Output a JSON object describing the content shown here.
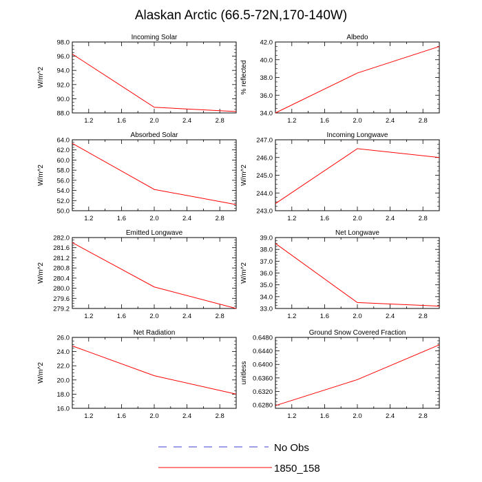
{
  "figure": {
    "title": "Alaskan Arctic (66.5-72N,170-140W)",
    "legend": [
      {
        "label": "No Obs",
        "color": "#3b3bd6",
        "style": "dashed"
      },
      {
        "label": "1850_158",
        "color": "#ff0000",
        "style": "solid"
      }
    ]
  },
  "chart_data": [
    {
      "type": "line",
      "title": "Incoming Solar",
      "ylabel": "W/m^2",
      "xlim": [
        1,
        3
      ],
      "ylim": [
        88,
        98
      ],
      "xticks": [
        "1.2",
        "1.6",
        "2.0",
        "2.4",
        "2.8"
      ],
      "yticks": [
        "88.0",
        "90.0",
        "92.0",
        "94.0",
        "96.0",
        "98.0"
      ],
      "series": [
        {
          "name": "1850_158",
          "x": [
            1,
            2,
            3
          ],
          "y": [
            96.3,
            88.8,
            88.2
          ]
        }
      ]
    },
    {
      "type": "line",
      "title": "Albedo",
      "ylabel": "% reflected",
      "xlim": [
        1,
        3
      ],
      "ylim": [
        34,
        42
      ],
      "xticks": [
        "1.2",
        "1.6",
        "2.0",
        "2.4",
        "2.8"
      ],
      "yticks": [
        "34.0",
        "36.0",
        "38.0",
        "40.0",
        "42.0"
      ],
      "series": [
        {
          "name": "1850_158",
          "x": [
            1,
            2,
            3
          ],
          "y": [
            34.0,
            38.5,
            41.5
          ]
        }
      ]
    },
    {
      "type": "line",
      "title": "Absorbed Solar",
      "ylabel": "W/m^2",
      "xlim": [
        1,
        3
      ],
      "ylim": [
        50,
        64
      ],
      "xticks": [
        "1.2",
        "1.6",
        "2.0",
        "2.4",
        "2.8"
      ],
      "yticks": [
        "50.0",
        "52.0",
        "54.0",
        "56.0",
        "58.0",
        "60.0",
        "62.0",
        "64.0"
      ],
      "series": [
        {
          "name": "1850_158",
          "x": [
            1,
            2,
            3
          ],
          "y": [
            63.3,
            54.2,
            51.2
          ]
        }
      ]
    },
    {
      "type": "line",
      "title": "Incoming Longwave",
      "ylabel": "W/m^2",
      "xlim": [
        1,
        3
      ],
      "ylim": [
        243,
        247
      ],
      "xticks": [
        "1.2",
        "1.6",
        "2.0",
        "2.4",
        "2.8"
      ],
      "yticks": [
        "243.0",
        "244.0",
        "245.0",
        "246.0",
        "247.0"
      ],
      "series": [
        {
          "name": "1850_158",
          "x": [
            1,
            2,
            3
          ],
          "y": [
            243.4,
            246.5,
            246.0
          ]
        }
      ]
    },
    {
      "type": "line",
      "title": "Emitted Longwave",
      "ylabel": "W/m^2",
      "xlim": [
        1,
        3
      ],
      "ylim": [
        279.2,
        282.0
      ],
      "xticks": [
        "1.2",
        "1.6",
        "2.0",
        "2.4",
        "2.8"
      ],
      "yticks": [
        "279.2",
        "279.6",
        "280.0",
        "280.4",
        "280.8",
        "281.2",
        "281.6",
        "282.0"
      ],
      "series": [
        {
          "name": "1850_158",
          "x": [
            1,
            2,
            3
          ],
          "y": [
            281.8,
            280.05,
            279.2
          ]
        }
      ]
    },
    {
      "type": "line",
      "title": "Net Longwave",
      "ylabel": "W/m^2",
      "xlim": [
        1,
        3
      ],
      "ylim": [
        33,
        39
      ],
      "xticks": [
        "1.2",
        "1.6",
        "2.0",
        "2.4",
        "2.8"
      ],
      "yticks": [
        "33.0",
        "34.0",
        "35.0",
        "36.0",
        "37.0",
        "38.0",
        "39.0"
      ],
      "series": [
        {
          "name": "1850_158",
          "x": [
            1,
            2,
            3
          ],
          "y": [
            38.5,
            33.5,
            33.2
          ]
        }
      ]
    },
    {
      "type": "line",
      "title": "Net Radiation",
      "ylabel": "W/m^2",
      "xlim": [
        1,
        3
      ],
      "ylim": [
        16,
        26
      ],
      "xticks": [
        "1.2",
        "1.6",
        "2.0",
        "2.4",
        "2.8"
      ],
      "yticks": [
        "16.0",
        "18.0",
        "20.0",
        "22.0",
        "24.0",
        "26.0"
      ],
      "series": [
        {
          "name": "1850_158",
          "x": [
            1,
            2,
            3
          ],
          "y": [
            24.8,
            20.6,
            18.0
          ]
        }
      ]
    },
    {
      "type": "line",
      "title": "Ground Snow Covered Fraction",
      "ylabel": "unitless",
      "xlim": [
        1,
        3
      ],
      "ylim": [
        0.627,
        0.648
      ],
      "xticks": [
        "1.2",
        "1.6",
        "2.0",
        "2.4",
        "2.8"
      ],
      "yticks": [
        "0.6280",
        "0.6320",
        "0.6360",
        "0.6400",
        "0.6440",
        "0.6480"
      ],
      "series": [
        {
          "name": "1850_158",
          "x": [
            1,
            2,
            3
          ],
          "y": [
            0.6278,
            0.6355,
            0.6458
          ]
        }
      ]
    }
  ]
}
